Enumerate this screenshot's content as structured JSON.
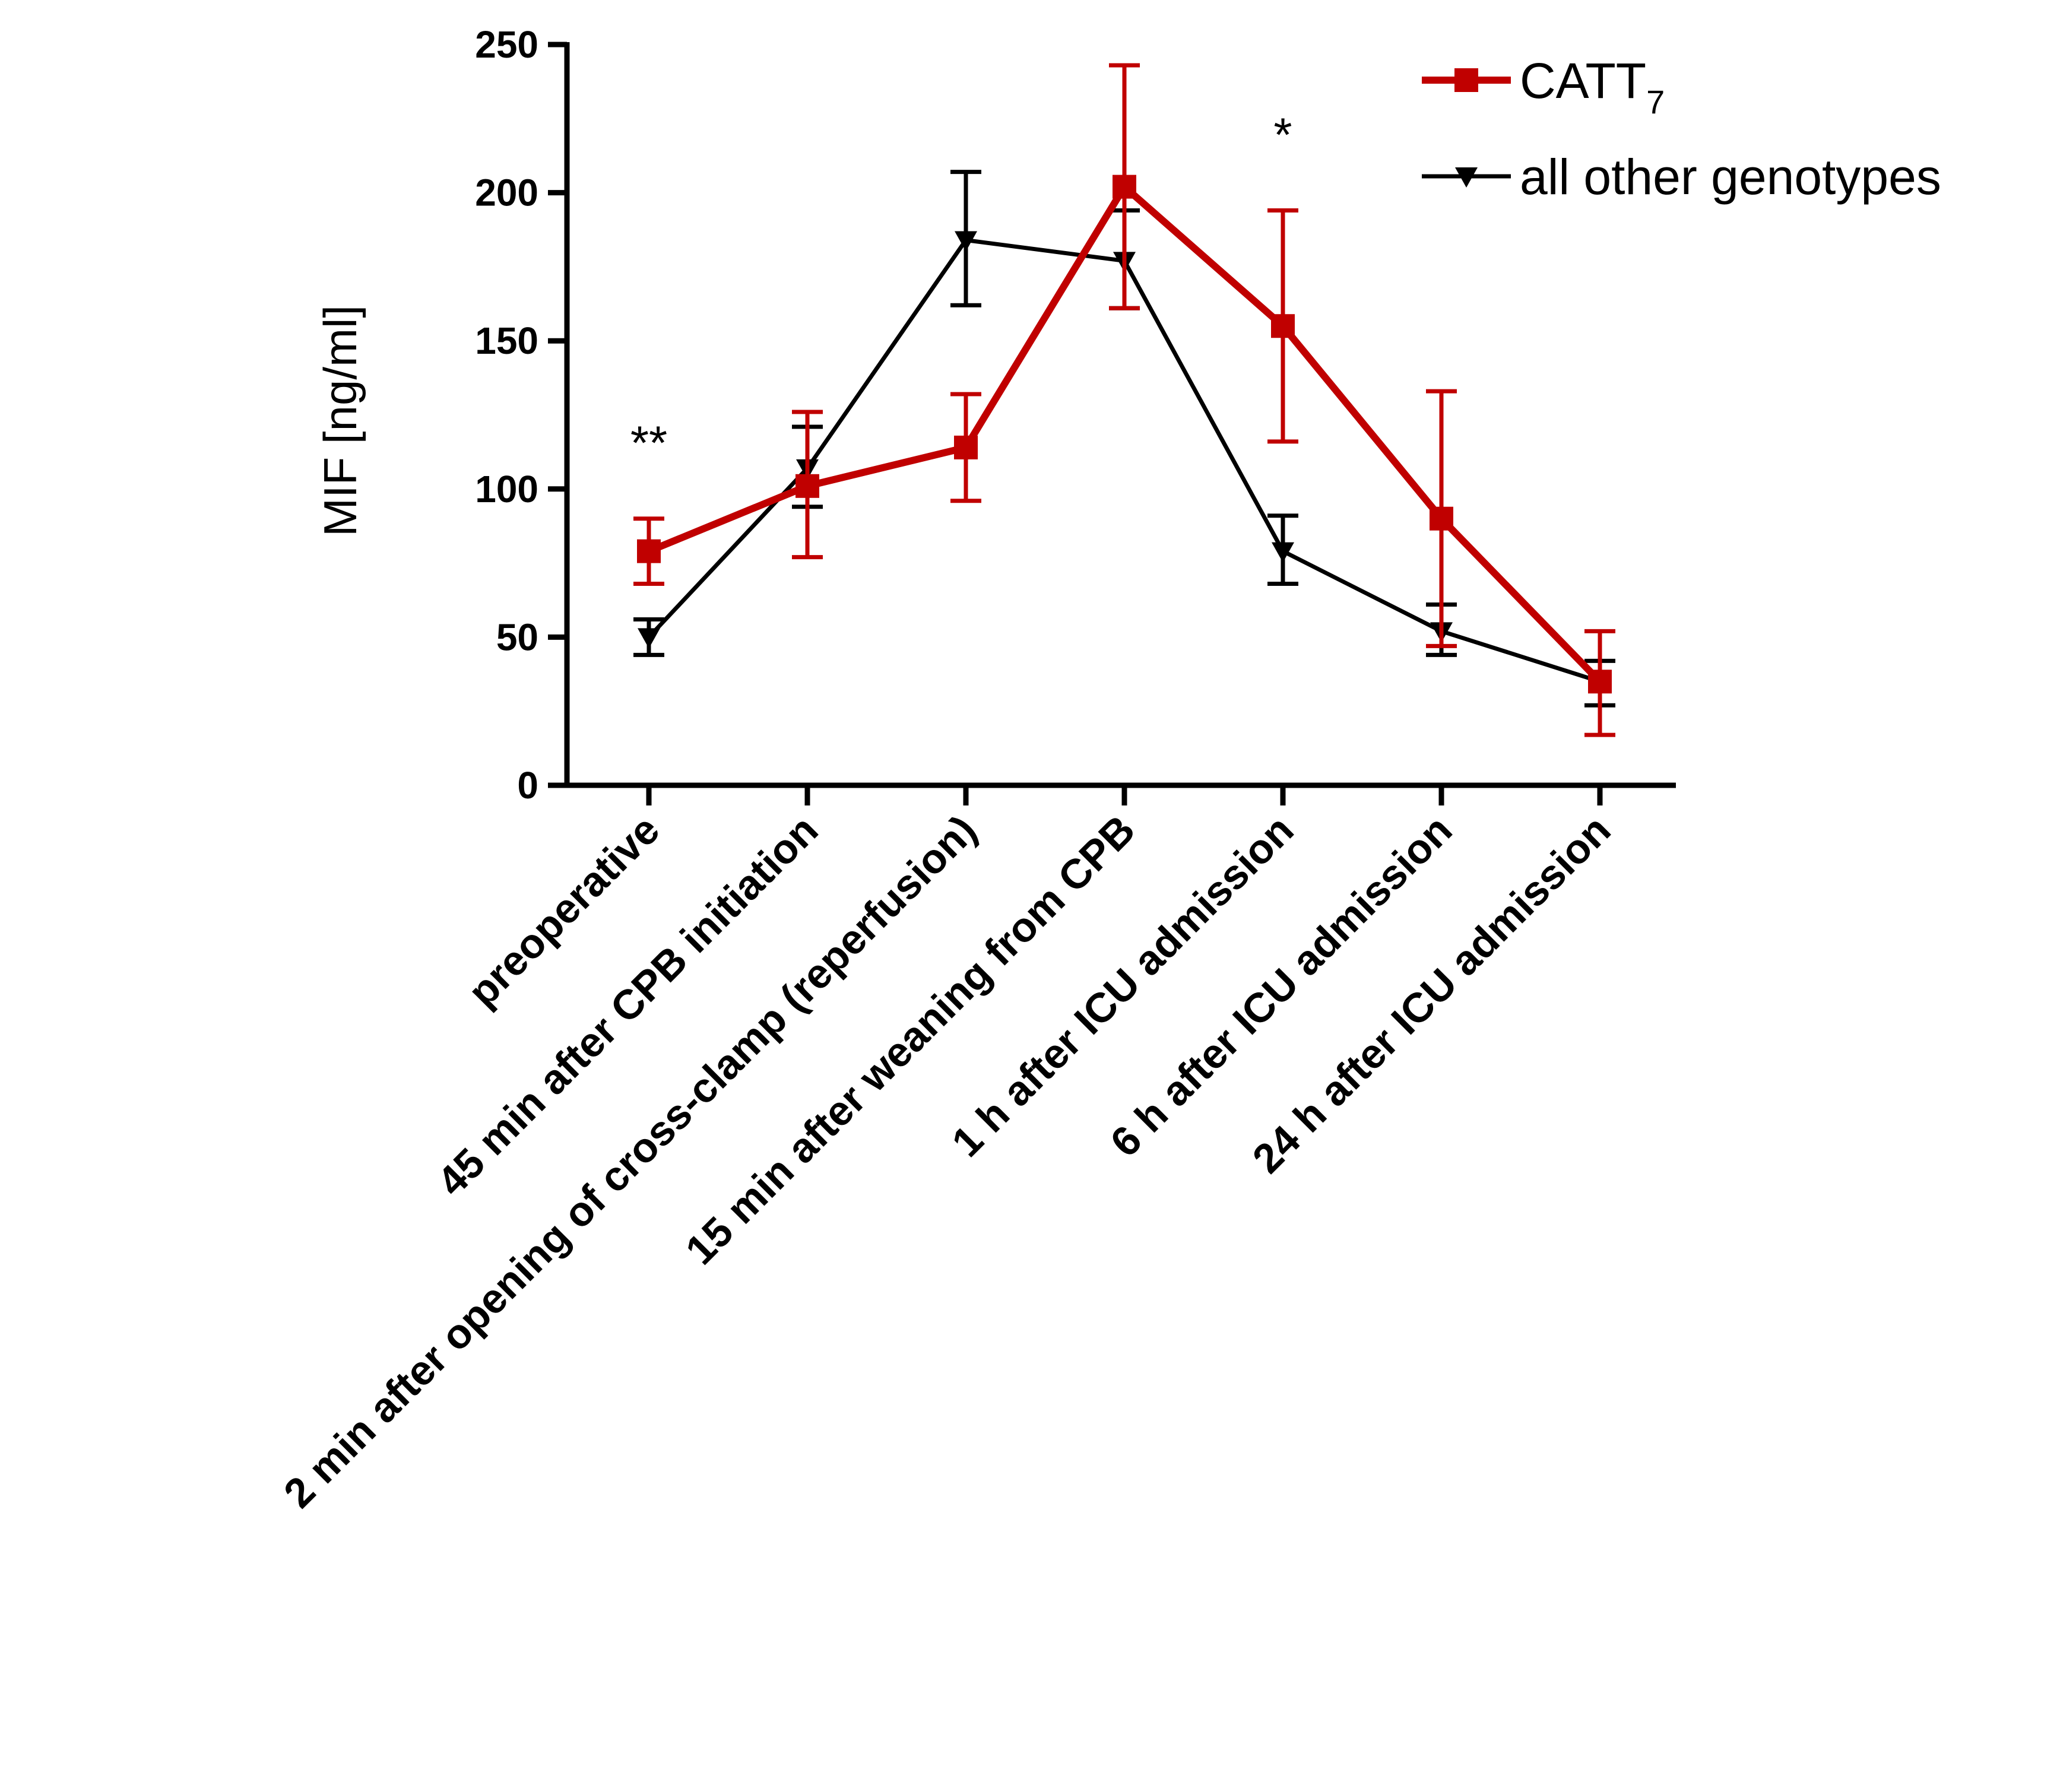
{
  "chart_data": {
    "type": "line",
    "title": "",
    "xlabel": "",
    "ylabel": "MIF [ng/ml]",
    "ylim": [
      0,
      250
    ],
    "yticks": [
      0,
      50,
      100,
      150,
      200,
      250
    ],
    "categories": [
      "preoperative",
      "45 min after CPB initiation",
      "2 min after opening of cross-clamp (reperfusion)",
      "15 min after weaning from CPB",
      "1 h after ICU admission",
      "6 h after ICU admission",
      "24 h after ICU admission"
    ],
    "series": [
      {
        "name": "CATT",
        "name_subscript": "7",
        "color": "#c00000",
        "marker": "square",
        "values": [
          79,
          101,
          114,
          202,
          155,
          90,
          35
        ],
        "err_low": [
          68,
          77,
          96,
          161,
          116,
          47,
          17
        ],
        "err_high": [
          90,
          126,
          132,
          243,
          194,
          133,
          52
        ]
      },
      {
        "name": "all other genotypes",
        "color": "#000000",
        "marker": "triangle-down",
        "values": [
          50,
          107,
          184,
          177,
          79,
          52,
          35
        ],
        "err_low": [
          44,
          94,
          162,
          161,
          68,
          44,
          27
        ],
        "err_high": [
          56,
          121,
          207,
          194,
          91,
          61,
          42
        ]
      }
    ],
    "annotations": [
      {
        "category_index": 0,
        "text": "**"
      },
      {
        "category_index": 4,
        "text": "*"
      }
    ],
    "legend_position": "top-right"
  }
}
